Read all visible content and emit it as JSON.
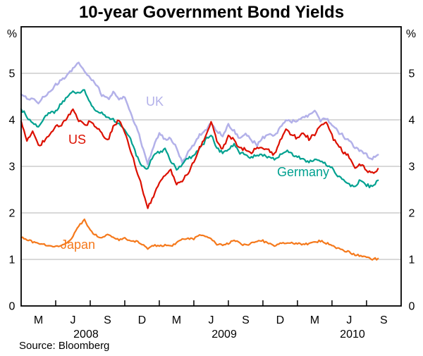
{
  "title": "10-year Government Bond Yields",
  "source": "Source: Bloomberg",
  "chart_data": {
    "type": "line",
    "title": "10-year Government Bond Yields",
    "unit": "%",
    "ylim": [
      0,
      6
    ],
    "yticks": [
      0,
      1,
      2,
      3,
      4,
      5
    ],
    "grid": true,
    "x_start": "Feb 2008",
    "x_end": "Sep 2010",
    "values_step_months": 0.5,
    "x_tick_month_offsets": [
      3,
      6,
      9,
      12,
      15,
      18,
      21,
      24,
      27,
      30
    ],
    "x_month_labels": [
      "M",
      "J",
      "S",
      "D",
      "M",
      "J",
      "S",
      "D",
      "M",
      "J",
      "S"
    ],
    "x_month_label_offsets": [
      1.5,
      4.5,
      7.5,
      10.5,
      13.5,
      16.5,
      19.5,
      22.5,
      25.5,
      28.5,
      31.5
    ],
    "x_year_labels": [
      "2008",
      "2009",
      "2010"
    ],
    "x_year_label_offsets": [
      5.63,
      17.64,
      28.78
    ],
    "source": "Source: Bloomberg",
    "series": [
      {
        "name": "UK",
        "color": "#b3b1e9",
        "values": [
          4.55,
          4.45,
          4.45,
          4.35,
          4.5,
          4.6,
          4.75,
          4.85,
          4.95,
          5.1,
          5.25,
          5.05,
          4.9,
          4.75,
          4.55,
          4.45,
          4.6,
          4.45,
          4.5,
          4.15,
          3.85,
          3.45,
          3.05,
          3.45,
          3.7,
          3.6,
          3.6,
          3.4,
          3.05,
          3.3,
          3.45,
          3.7,
          3.75,
          3.95,
          3.75,
          3.65,
          3.9,
          3.75,
          3.6,
          3.7,
          3.55,
          3.45,
          3.6,
          3.7,
          3.65,
          3.85,
          4.0,
          3.95,
          4.0,
          4.05,
          4.1,
          4.2,
          4.0,
          4.05,
          3.9,
          3.75,
          3.65,
          3.55,
          3.4,
          3.35,
          3.25,
          3.15,
          3.25
        ]
      },
      {
        "name": "Germany",
        "color": "#00a190",
        "values": [
          4.25,
          4.05,
          3.95,
          3.85,
          4.05,
          4.15,
          4.2,
          4.35,
          4.5,
          4.62,
          4.55,
          4.65,
          4.35,
          4.2,
          4.15,
          4.05,
          4.0,
          3.9,
          3.8,
          3.6,
          3.25,
          3.0,
          2.95,
          3.25,
          3.3,
          3.4,
          3.1,
          2.95,
          3.05,
          3.15,
          3.25,
          3.4,
          3.55,
          3.7,
          3.4,
          3.3,
          3.35,
          3.45,
          3.3,
          3.25,
          3.2,
          3.25,
          3.25,
          3.2,
          3.15,
          3.25,
          3.35,
          3.25,
          3.2,
          3.15,
          3.1,
          3.15,
          3.1,
          3.05,
          2.95,
          2.8,
          2.7,
          2.6,
          2.6,
          2.7,
          2.6,
          2.55,
          2.7
        ]
      },
      {
        "name": "US",
        "color": "#dc1000",
        "values": [
          3.95,
          3.55,
          3.75,
          3.45,
          3.55,
          3.7,
          3.85,
          3.9,
          4.05,
          4.25,
          4.0,
          3.9,
          3.95,
          3.85,
          3.7,
          3.55,
          3.85,
          4.0,
          3.75,
          3.35,
          2.95,
          2.55,
          2.1,
          2.35,
          2.65,
          2.8,
          2.95,
          2.6,
          2.7,
          2.85,
          3.1,
          3.4,
          3.65,
          3.95,
          3.55,
          3.35,
          3.65,
          3.55,
          3.4,
          3.35,
          3.3,
          3.4,
          3.4,
          3.35,
          3.25,
          3.55,
          3.8,
          3.7,
          3.6,
          3.7,
          3.6,
          3.7,
          3.85,
          3.95,
          3.65,
          3.45,
          3.3,
          3.2,
          2.95,
          3.05,
          2.9,
          2.85,
          2.95
        ]
      },
      {
        "name": "Japan",
        "color": "#f5791c",
        "values": [
          1.48,
          1.42,
          1.38,
          1.34,
          1.32,
          1.29,
          1.28,
          1.31,
          1.35,
          1.5,
          1.72,
          1.86,
          1.62,
          1.52,
          1.47,
          1.52,
          1.47,
          1.42,
          1.46,
          1.4,
          1.4,
          1.32,
          1.24,
          1.3,
          1.3,
          1.3,
          1.3,
          1.35,
          1.44,
          1.45,
          1.45,
          1.52,
          1.5,
          1.44,
          1.33,
          1.3,
          1.35,
          1.42,
          1.35,
          1.3,
          1.35,
          1.4,
          1.4,
          1.35,
          1.3,
          1.35,
          1.35,
          1.35,
          1.35,
          1.32,
          1.35,
          1.37,
          1.4,
          1.35,
          1.3,
          1.25,
          1.2,
          1.15,
          1.1,
          1.08,
          1.05,
          1.0,
          1.02
        ]
      }
    ]
  }
}
